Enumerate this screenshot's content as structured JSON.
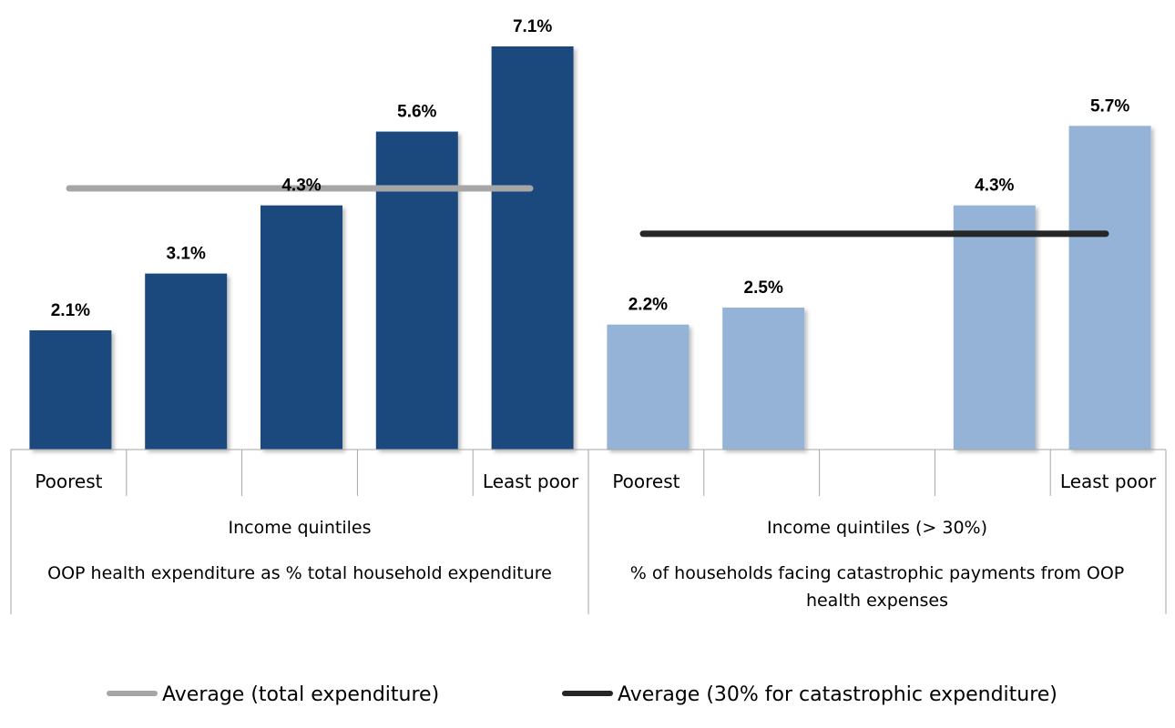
{
  "chart_data": {
    "type": "bar",
    "title": "",
    "ylim": [
      0,
      7.5
    ],
    "grid": false,
    "legend_position": "bottom",
    "groups": [
      {
        "series_label": "Income quintiles",
        "description": "OOP health expenditure as % total household expenditure",
        "color": "#1f497d",
        "categories": [
          "Poorest",
          "",
          "",
          "",
          "Least poor"
        ],
        "values": [
          2.1,
          3.1,
          4.3,
          5.6,
          7.1
        ],
        "data_labels": [
          "2.1%",
          "3.1%",
          "4.3%",
          "5.6%",
          "7.1%"
        ],
        "average": {
          "name": "Average (total expenditure)",
          "value": 4.6,
          "color": "#a6a6a6"
        }
      },
      {
        "series_label": "Income quintiles (> 30%)",
        "description": "% of households facing catastrophic payments from OOP health expenses",
        "color": "#95b3d7",
        "categories": [
          "Poorest",
          "",
          "",
          "",
          "Least poor"
        ],
        "values": [
          2.2,
          2.5,
          null,
          4.3,
          5.7
        ],
        "data_labels": [
          "2.2%",
          "2.5%",
          "",
          "4.3%",
          "5.7%"
        ],
        "average": {
          "name": "Average (30% for catastrophic expenditure)",
          "value": 3.8,
          "color": "#262626"
        }
      }
    ]
  }
}
